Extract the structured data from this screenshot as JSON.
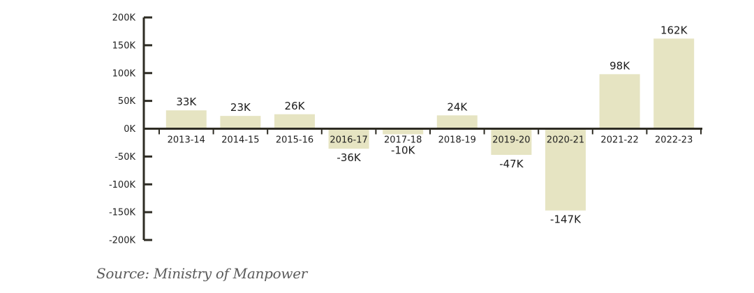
{
  "chart_data": {
    "type": "bar",
    "categories": [
      "2013-14",
      "2014-15",
      "2015-16",
      "2016-17",
      "2017-18",
      "2018-19",
      "2019-20",
      "2020-21",
      "2021-22",
      "2022-23"
    ],
    "values": [
      33,
      23,
      26,
      -36,
      -10,
      24,
      -47,
      -147,
      98,
      162
    ],
    "data_labels": [
      "33K",
      "23K",
      "26K",
      "-36K",
      "-10K",
      "24K",
      "-47K",
      "-147K",
      "98K",
      "162K"
    ],
    "y_ticks": [
      200,
      150,
      100,
      50,
      0,
      -50,
      -100,
      -150,
      -200
    ],
    "y_tick_labels": [
      "200K",
      "150K",
      "100K",
      "50K",
      "0K",
      "-50K",
      "-100K",
      "-150K",
      "-200K"
    ],
    "ylim": [
      -200,
      200
    ],
    "unit": "K",
    "grid": false,
    "bar_color": "#e6e4c2",
    "axis_color": "#2e2c24"
  },
  "source_text": "Source: Ministry of Manpower"
}
